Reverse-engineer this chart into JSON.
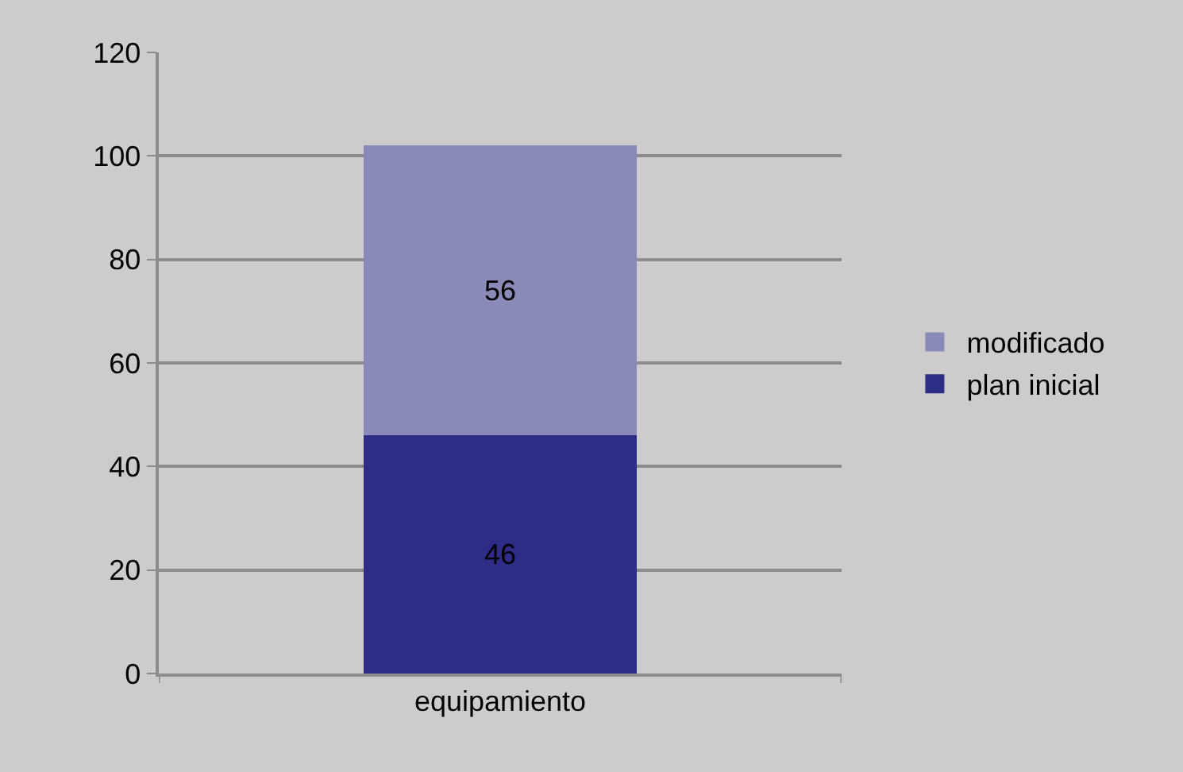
{
  "chart_data": {
    "type": "bar",
    "stacked": true,
    "categories": [
      "equipamiento"
    ],
    "series": [
      {
        "name": "plan inicial",
        "color": "#2e2c86",
        "values": [
          46
        ]
      },
      {
        "name": "modificado",
        "color": "#8a8ab8",
        "values": [
          56
        ]
      }
    ],
    "ylim": [
      0,
      120
    ],
    "yticks": [
      0,
      20,
      40,
      60,
      80,
      100,
      120
    ],
    "grid": "y",
    "legend": "right",
    "data_labels": true
  }
}
